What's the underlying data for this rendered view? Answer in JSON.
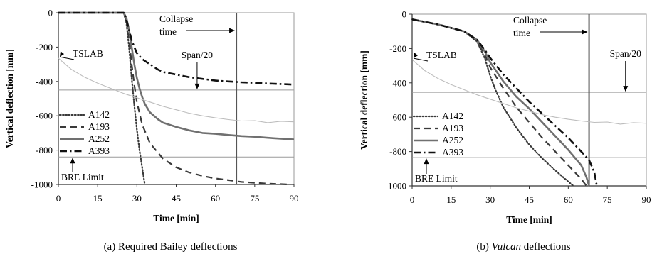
{
  "chart_data": [
    {
      "type": "line",
      "caption_prefix": "(a) Required Bailey deflections",
      "caption_italic": "",
      "caption_suffix": "",
      "xlabel": "Time [min]",
      "ylabel": "Vertical deflection [mm]",
      "xlim": [
        0,
        90
      ],
      "ylim": [
        -1000,
        0
      ],
      "xticks": [
        "0",
        "15",
        "30",
        "45",
        "60",
        "75",
        "90"
      ],
      "yticks": [
        "0",
        "-200",
        "-400",
        "-600",
        "-800",
        "-1000"
      ],
      "grid": false,
      "legend_position": "bottom-left",
      "series": [
        {
          "name": "A142",
          "style": "dotted",
          "x": [
            0,
            25,
            26,
            27,
            28,
            29,
            30,
            31,
            32,
            33
          ],
          "y": [
            0,
            0,
            -60,
            -200,
            -380,
            -540,
            -680,
            -800,
            -900,
            -1000
          ]
        },
        {
          "name": "A193",
          "style": "dashed",
          "x": [
            0,
            25,
            26,
            27,
            28,
            29,
            30,
            32,
            35,
            40,
            45,
            50,
            55,
            60,
            65,
            70,
            75,
            80,
            85,
            88
          ],
          "y": [
            0,
            0,
            -50,
            -150,
            -300,
            -420,
            -520,
            -650,
            -760,
            -850,
            -900,
            -930,
            -950,
            -965,
            -975,
            -985,
            -990,
            -995,
            -998,
            -1000
          ]
        },
        {
          "name": "A252",
          "style": "solid-thick",
          "x": [
            0,
            25,
            26,
            27,
            28,
            29,
            30,
            31,
            32,
            33,
            35,
            38,
            40,
            45,
            50,
            55,
            60,
            65,
            70,
            75,
            80,
            85,
            90
          ],
          "y": [
            0,
            0,
            -30,
            -100,
            -200,
            -300,
            -380,
            -440,
            -490,
            -530,
            -580,
            -620,
            -640,
            -665,
            -685,
            -700,
            -705,
            -712,
            -718,
            -722,
            -728,
            -733,
            -738
          ]
        },
        {
          "name": "A393",
          "style": "dash-dot",
          "x": [
            0,
            25,
            26,
            27,
            28,
            29,
            30,
            32,
            35,
            38,
            40,
            45,
            50,
            55,
            60,
            65,
            70,
            75,
            80,
            85,
            90
          ],
          "y": [
            0,
            0,
            -40,
            -100,
            -160,
            -200,
            -235,
            -270,
            -300,
            -330,
            -345,
            -360,
            -375,
            -385,
            -395,
            -400,
            -405,
            -408,
            -412,
            -415,
            -418
          ]
        },
        {
          "name": "TSLAB",
          "style": "light",
          "x": [
            0,
            5,
            10,
            15,
            20,
            25,
            30,
            35,
            40,
            45,
            50,
            55,
            60,
            65,
            70,
            75,
            80,
            85,
            90
          ],
          "y": [
            -265,
            -330,
            -375,
            -410,
            -440,
            -470,
            -495,
            -520,
            -545,
            -565,
            -585,
            -600,
            -612,
            -622,
            -630,
            -628,
            -640,
            -632,
            -635
          ]
        }
      ],
      "reference_lines": [
        {
          "label": "Span/20",
          "y": -450
        },
        {
          "label": "BRE Limit",
          "y": -840
        }
      ],
      "annotations": [
        {
          "label": "Collapse",
          "label2": "time",
          "x": 68
        }
      ]
    },
    {
      "type": "line",
      "caption_prefix": "(b) ",
      "caption_italic": "Vulcan",
      "caption_suffix": " deflections",
      "xlabel": "Time [min]",
      "ylabel": "Vertical deflection [mm]",
      "xlim": [
        0,
        90
      ],
      "ylim": [
        -1000,
        0
      ],
      "xticks": [
        "0",
        "15",
        "30",
        "45",
        "60",
        "75",
        "90"
      ],
      "yticks": [
        "0",
        "-200",
        "-400",
        "-600",
        "-800",
        "-1000"
      ],
      "grid": false,
      "legend_position": "bottom-left",
      "series": [
        {
          "name": "A142",
          "style": "dotted",
          "x": [
            0,
            10,
            20,
            25,
            28,
            30,
            32,
            35,
            40,
            45,
            50,
            55,
            60,
            62
          ],
          "y": [
            -30,
            -60,
            -100,
            -160,
            -260,
            -360,
            -440,
            -540,
            -660,
            -760,
            -840,
            -910,
            -975,
            -1000
          ]
        },
        {
          "name": "A193",
          "style": "dashed",
          "x": [
            0,
            10,
            20,
            25,
            28,
            30,
            35,
            40,
            45,
            50,
            55,
            60,
            65,
            67
          ],
          "y": [
            -30,
            -60,
            -100,
            -155,
            -240,
            -310,
            -430,
            -540,
            -630,
            -720,
            -800,
            -880,
            -960,
            -1000
          ]
        },
        {
          "name": "A252",
          "style": "solid-thick",
          "x": [
            0,
            10,
            20,
            25,
            28,
            30,
            35,
            40,
            45,
            50,
            55,
            60,
            65,
            67,
            68
          ],
          "y": [
            -30,
            -60,
            -100,
            -150,
            -220,
            -280,
            -390,
            -480,
            -550,
            -630,
            -710,
            -790,
            -880,
            -950,
            -1000
          ]
        },
        {
          "name": "A393",
          "style": "dash-dot",
          "x": [
            0,
            10,
            20,
            25,
            28,
            30,
            35,
            40,
            45,
            50,
            55,
            60,
            65,
            68,
            70,
            71
          ],
          "y": [
            -30,
            -60,
            -100,
            -150,
            -210,
            -255,
            -350,
            -430,
            -510,
            -580,
            -650,
            -720,
            -800,
            -850,
            -920,
            -1000
          ]
        },
        {
          "name": "TSLAB",
          "style": "light",
          "x": [
            0,
            5,
            10,
            15,
            20,
            25,
            30,
            35,
            40,
            45,
            50,
            55,
            60,
            65,
            70,
            75,
            80,
            85,
            90
          ],
          "y": [
            -265,
            -330,
            -375,
            -410,
            -440,
            -470,
            -495,
            -520,
            -545,
            -565,
            -585,
            -600,
            -612,
            -622,
            -630,
            -628,
            -640,
            -632,
            -635
          ]
        }
      ],
      "reference_lines": [
        {
          "label": "Span/20",
          "y": -455
        },
        {
          "label": "BRE Limit",
          "y": -835
        }
      ],
      "annotations": [
        {
          "label": "Collapse",
          "label2": "time",
          "x": 68
        }
      ]
    }
  ]
}
